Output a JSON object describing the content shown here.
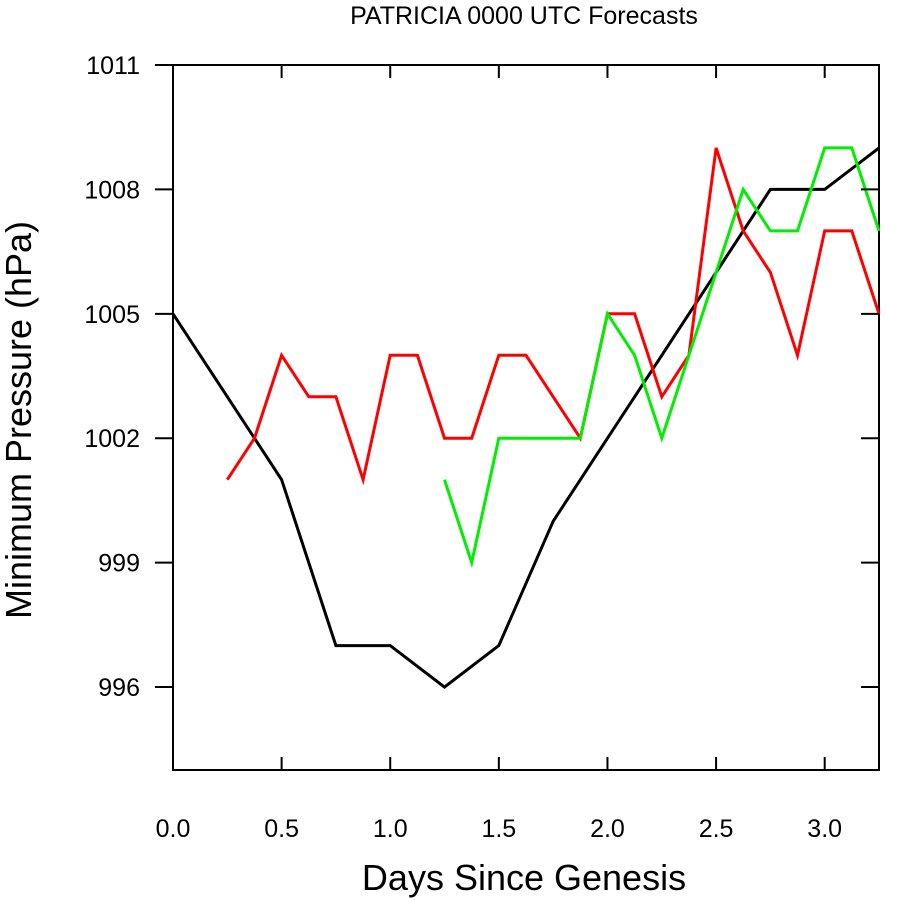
{
  "chart_data": {
    "type": "line",
    "title": "PATRICIA 0000 UTC Forecasts",
    "xlabel": "Days Since Genesis",
    "ylabel": "Minimum Pressure (hPa)",
    "xlim": [
      0,
      3.25
    ],
    "ylim": [
      994,
      1011
    ],
    "x_ticks": [
      0.0,
      0.5,
      1.0,
      1.5,
      2.0,
      2.5,
      3.0
    ],
    "x_tick_labels": [
      "0.0",
      "0.5",
      "1.0",
      "1.5",
      "2.0",
      "2.5",
      "3.0"
    ],
    "y_ticks": [
      996,
      999,
      1002,
      1005,
      1008,
      1011
    ],
    "y_tick_labels": [
      "996",
      "999",
      "1002",
      "1005",
      "1008",
      "1011"
    ],
    "grid": false,
    "series": [
      {
        "color": "#000000",
        "points": [
          [
            0,
            1005
          ],
          [
            0.5,
            1001
          ],
          [
            0.75,
            997
          ],
          [
            1.0,
            997
          ],
          [
            1.25,
            996
          ],
          [
            1.5,
            997
          ],
          [
            1.75,
            1000
          ],
          [
            2.0,
            1002
          ],
          [
            2.25,
            1004
          ],
          [
            2.5,
            1006
          ],
          [
            2.75,
            1008
          ],
          [
            3.0,
            1008
          ],
          [
            3.25,
            1009
          ]
        ]
      },
      {
        "color": "#ff0000",
        "points": [
          [
            0.25,
            1001
          ],
          [
            0.375,
            1002
          ],
          [
            0.5,
            1004
          ],
          [
            0.625,
            1003
          ],
          [
            0.75,
            1003
          ],
          [
            0.875,
            1001
          ],
          [
            1.0,
            1004
          ],
          [
            1.125,
            1004
          ],
          [
            1.25,
            1002
          ],
          [
            1.375,
            1002
          ],
          [
            1.5,
            1004
          ],
          [
            1.625,
            1004
          ],
          [
            1.75,
            1003
          ],
          [
            1.875,
            1002
          ],
          [
            2.0,
            1005
          ],
          [
            2.125,
            1005
          ],
          [
            2.25,
            1003
          ],
          [
            2.375,
            1004
          ],
          [
            2.5,
            1009
          ],
          [
            2.625,
            1007
          ],
          [
            2.75,
            1006
          ],
          [
            2.875,
            1004
          ],
          [
            3.0,
            1007
          ],
          [
            3.125,
            1007
          ],
          [
            3.25,
            1005
          ]
        ]
      },
      {
        "color": "#00ee00",
        "points": [
          [
            1.25,
            1001
          ],
          [
            1.375,
            999
          ],
          [
            1.5,
            1002
          ],
          [
            1.625,
            1002
          ],
          [
            1.75,
            1002
          ],
          [
            1.875,
            1002
          ],
          [
            2.0,
            1005
          ],
          [
            2.125,
            1004
          ],
          [
            2.25,
            1002
          ],
          [
            2.375,
            1004
          ],
          [
            2.5,
            1006
          ],
          [
            2.625,
            1008
          ],
          [
            2.75,
            1007
          ],
          [
            2.875,
            1007
          ],
          [
            3.0,
            1009
          ],
          [
            3.125,
            1009
          ],
          [
            3.25,
            1007
          ]
        ]
      }
    ]
  }
}
